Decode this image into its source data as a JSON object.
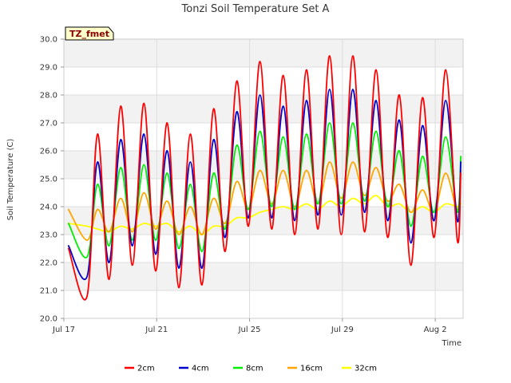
{
  "chart_data": {
    "type": "line",
    "title": "Tonzi Soil Temperature Set A",
    "xlabel": "Time",
    "ylabel": "Soil Temperature (C)",
    "site_tag": "TZ_fmet",
    "xlim": [
      0,
      17.2
    ],
    "ylim": [
      20.0,
      30.0
    ],
    "y_ticks": [
      "20.0",
      "21.0",
      "22.0",
      "23.0",
      "24.0",
      "25.0",
      "26.0",
      "27.0",
      "28.0",
      "29.0",
      "30.0"
    ],
    "x_ticks": [
      {
        "value": 0,
        "label": "Jul 17"
      },
      {
        "value": 4,
        "label": "Jul 21"
      },
      {
        "value": 8,
        "label": "Jul 25"
      },
      {
        "value": 12,
        "label": "Jul 29"
      },
      {
        "value": 16,
        "label": "Aug 2"
      }
    ],
    "grid": true,
    "legend_position": "bottom",
    "x": [
      0.2,
      1.0,
      1.45,
      1.95,
      2.45,
      2.95,
      3.45,
      3.95,
      4.45,
      4.95,
      5.45,
      5.95,
      6.45,
      6.95,
      7.45,
      7.95,
      8.45,
      8.95,
      9.45,
      9.95,
      10.45,
      10.95,
      11.45,
      11.95,
      12.45,
      12.95,
      13.45,
      13.95,
      14.45,
      14.95,
      15.45,
      15.95,
      16.45,
      16.95,
      17.1
    ],
    "series": [
      {
        "name": "2cm",
        "color": "#ff0000",
        "values": [
          22.5,
          20.8,
          26.6,
          21.4,
          27.6,
          21.9,
          27.7,
          21.7,
          27.0,
          21.1,
          26.6,
          21.2,
          27.5,
          22.4,
          28.5,
          23.3,
          29.2,
          23.2,
          28.7,
          23.0,
          28.9,
          23.2,
          29.4,
          23.0,
          29.4,
          23.1,
          28.9,
          22.9,
          28.0,
          21.9,
          27.9,
          22.9,
          28.9,
          22.8,
          25.2
        ]
      },
      {
        "name": "4cm",
        "color": "#0000cc",
        "values": [
          22.6,
          21.5,
          25.6,
          22.0,
          26.4,
          22.6,
          26.6,
          22.3,
          26.0,
          21.8,
          25.6,
          21.8,
          26.4,
          22.9,
          27.4,
          23.6,
          28.0,
          23.6,
          27.6,
          23.5,
          27.8,
          23.7,
          28.2,
          23.7,
          28.2,
          23.8,
          27.8,
          23.5,
          27.1,
          22.7,
          26.9,
          23.5,
          27.8,
          23.5,
          25.6
        ]
      },
      {
        "name": "8cm",
        "color": "#00ee00",
        "values": [
          23.4,
          22.2,
          24.8,
          22.6,
          25.4,
          22.8,
          25.5,
          22.8,
          25.2,
          22.5,
          24.8,
          22.4,
          25.2,
          23.2,
          26.2,
          23.9,
          26.7,
          24.0,
          26.5,
          23.9,
          26.6,
          24.1,
          27.0,
          24.1,
          27.0,
          24.2,
          26.7,
          24.0,
          26.0,
          23.3,
          25.8,
          23.8,
          26.5,
          23.8,
          25.8
        ]
      },
      {
        "name": "16cm",
        "color": "#ffa500",
        "values": [
          23.9,
          22.8,
          23.9,
          23.1,
          24.3,
          23.1,
          24.5,
          23.2,
          24.2,
          23.0,
          24.0,
          23.0,
          24.3,
          23.4,
          24.9,
          23.9,
          25.3,
          24.1,
          25.3,
          24.0,
          25.3,
          24.1,
          25.6,
          24.3,
          25.6,
          24.4,
          25.4,
          24.2,
          24.8,
          23.8,
          24.6,
          23.8,
          25.2,
          23.9,
          25.3
        ]
      },
      {
        "name": "32cm",
        "color": "#ffff00",
        "values": [
          23.4,
          23.3,
          23.2,
          23.1,
          23.3,
          23.2,
          23.4,
          23.3,
          23.4,
          23.1,
          23.3,
          23.0,
          23.3,
          23.3,
          23.6,
          23.6,
          23.8,
          23.9,
          24.0,
          23.9,
          24.1,
          23.9,
          24.2,
          24.0,
          24.3,
          24.1,
          24.4,
          24.0,
          24.1,
          23.8,
          24.0,
          23.8,
          24.1,
          24.0,
          24.1
        ]
      }
    ]
  }
}
